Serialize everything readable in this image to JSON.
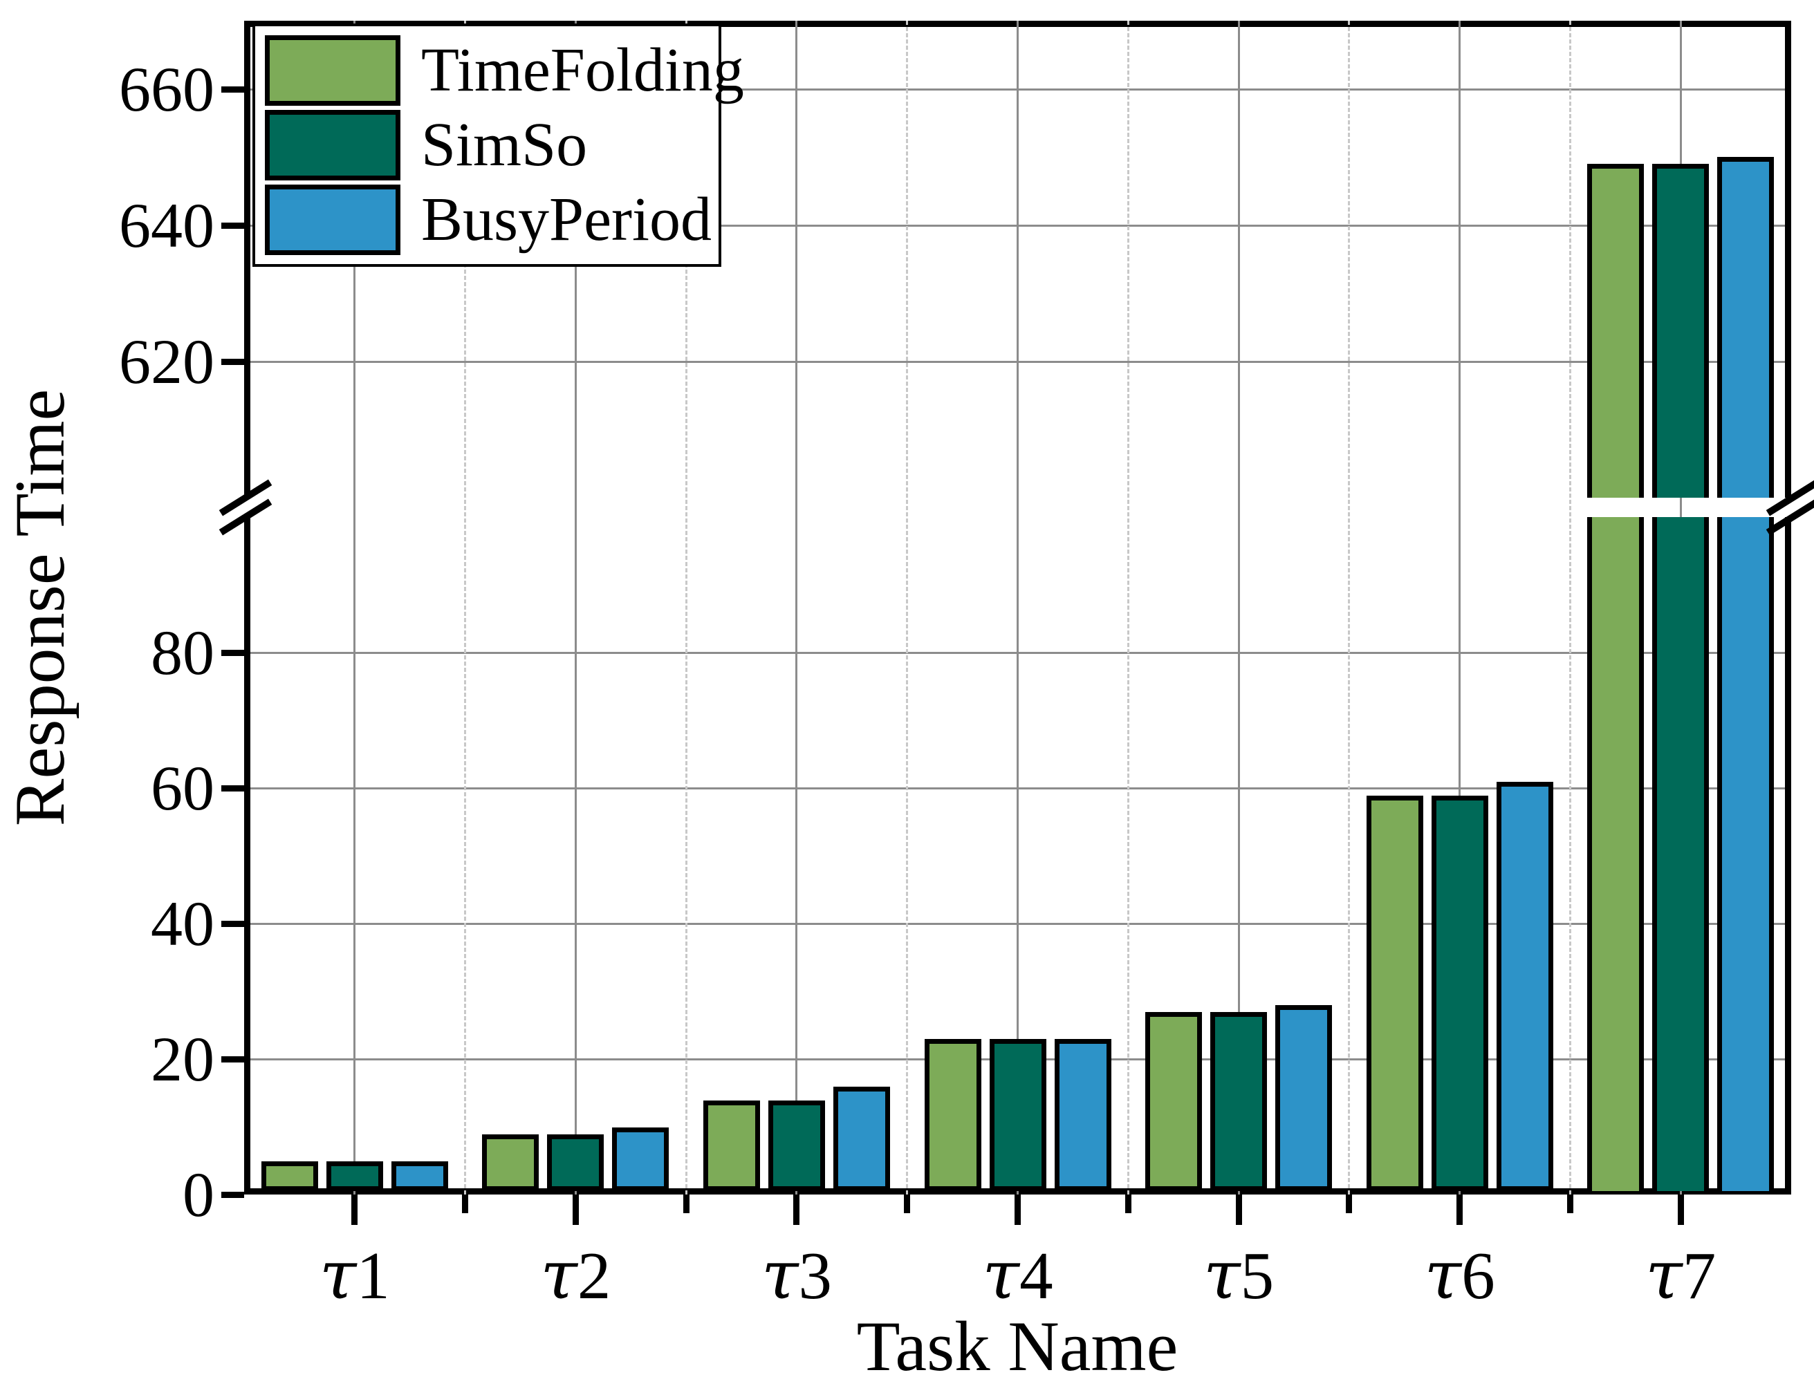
{
  "chart_data": {
    "type": "bar",
    "title": "",
    "xlabel": "Task Name",
    "ylabel": "Response Time",
    "categories": [
      "τ1",
      "τ2",
      "τ3",
      "τ4",
      "τ5",
      "τ6",
      "τ7"
    ],
    "series": [
      {
        "name": "TimeFolding",
        "color": "#7dab58",
        "edge_color": "#000000",
        "values": [
          4,
          8,
          13,
          22,
          26,
          58,
          649
        ]
      },
      {
        "name": "SimSo",
        "color": "#006a58",
        "edge_color": "#000000",
        "values": [
          4,
          8,
          13,
          22,
          26,
          58,
          649
        ]
      },
      {
        "name": "BusyPeriod",
        "color": "#2d93c8",
        "edge_color": "#000000",
        "values": [
          4,
          9,
          15,
          22,
          27,
          60,
          650
        ]
      }
    ],
    "broken_y_axis": {
      "lower_range": [
        0,
        100
      ],
      "lower_ticks": [
        0,
        20,
        40,
        60,
        80
      ],
      "upper_range": [
        600,
        670
      ],
      "upper_ticks": [
        620,
        640,
        660
      ]
    },
    "legend_position": "upper-left",
    "grid": {
      "horizontal_major": "solid",
      "vertical_category_center": "solid",
      "vertical_category_boundary": "dashed"
    },
    "colors": {
      "grid_solid": "#8c8c8c",
      "grid_dashed": "#c8c8c8",
      "axis": "#000000",
      "background": "#ffffff"
    }
  }
}
